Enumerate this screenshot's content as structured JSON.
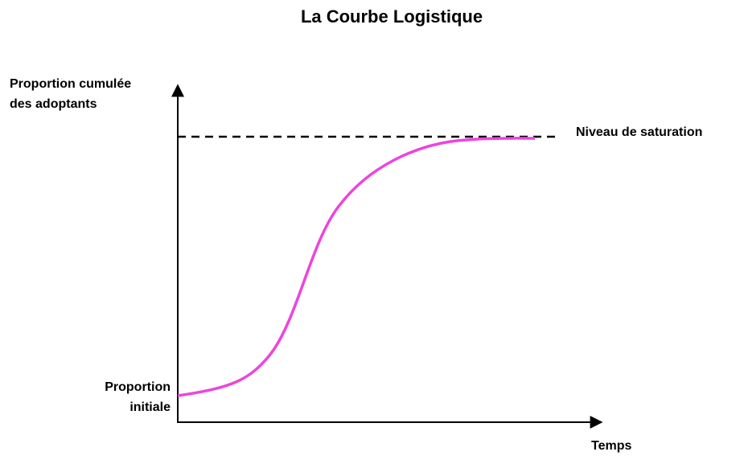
{
  "title": "La Courbe Logistique",
  "y_axis": {
    "label": [
      "Proportion cumulée",
      "des adoptants"
    ]
  },
  "x_axis": {
    "label": "Temps"
  },
  "annotations": {
    "saturation": "Niveau de saturation",
    "initial": [
      "Proportion",
      "initiale"
    ]
  }
}
